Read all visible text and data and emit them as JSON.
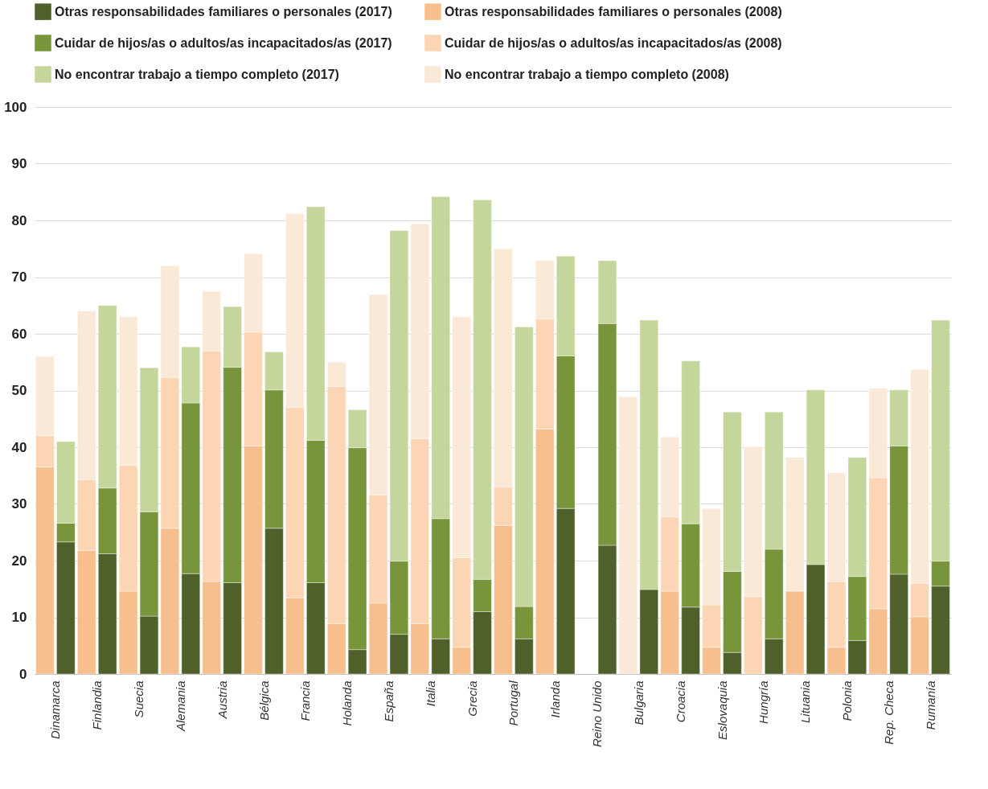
{
  "chart_data": {
    "type": "bar",
    "stacked": true,
    "categories": [
      "Dinamarca",
      null,
      "Finlandia",
      null,
      "Suecia",
      null,
      "Alemania",
      null,
      "Austria",
      null,
      "Bélgica",
      null,
      "Francia",
      null,
      "Holanda",
      null,
      "España",
      null,
      "Italia",
      null,
      "Grecia",
      null,
      "Portugal",
      null,
      "Irlanda",
      null,
      "Reino Unido",
      null,
      "Bulgaria",
      null,
      "Croacia",
      null,
      "Eslovaquia",
      null,
      "Hungría",
      null,
      "Lituania",
      null,
      "Polonia",
      null,
      "Rep. Checa",
      null,
      "Rumanía",
      null
    ],
    "series": [
      {
        "name": "Otras responsabilidades familiares o personales (2017)",
        "color": "#4f602a",
        "values": [
          null,
          23.3,
          null,
          21.2,
          null,
          10.2,
          null,
          17.7,
          null,
          16.1,
          null,
          25.7,
          null,
          16.1,
          null,
          4.3,
          null,
          7.0,
          null,
          6.2,
          null,
          11.0,
          null,
          6.2,
          null,
          29.2,
          null,
          22.7,
          null,
          14.9,
          null,
          11.8,
          null,
          3.8,
          null,
          6.2,
          null,
          19.3,
          null,
          5.9,
          null,
          17.6,
          null,
          15.5
        ]
      },
      {
        "name": "Otras responsabilidades familiares o personales (2008)",
        "color": "#f7bf8e",
        "values": [
          36.5,
          null,
          21.8,
          null,
          14.6,
          null,
          25.7,
          null,
          16.3,
          null,
          40.2,
          null,
          13.4,
          null,
          8.9,
          null,
          12.5,
          null,
          8.9,
          null,
          4.7,
          null,
          26.2,
          null,
          43.2,
          null,
          null,
          null,
          null,
          null,
          14.6,
          null,
          4.7,
          null,
          null,
          null,
          14.6,
          null,
          4.7,
          null,
          11.5,
          null,
          10.1,
          null
        ]
      },
      {
        "name": "Cuidar de hijos/as o adultos/as incapacitados/as (2017)",
        "color": "#78953c",
        "values": [
          null,
          3.3,
          null,
          11.6,
          null,
          18.4,
          null,
          30.1,
          null,
          38.0,
          null,
          24.4,
          null,
          25.1,
          null,
          35.6,
          null,
          12.9,
          null,
          21.2,
          null,
          5.7,
          null,
          5.7,
          null,
          26.9,
          null,
          39.1,
          null,
          null,
          null,
          14.7,
          null,
          14.3,
          null,
          15.8,
          null,
          null,
          null,
          11.3,
          null,
          22.6,
          null,
          4.4
        ]
      },
      {
        "name": "Cuidar de hijos/as o adultos/as incapacitados/as (2008)",
        "color": "#fcd5b4",
        "values": [
          5.5,
          null,
          12.5,
          null,
          22.2,
          null,
          26.6,
          null,
          40.7,
          null,
          20.1,
          null,
          33.6,
          null,
          41.8,
          null,
          19.1,
          null,
          32.6,
          null,
          15.8,
          null,
          6.8,
          null,
          19.4,
          null,
          null,
          null,
          null,
          null,
          13.1,
          null,
          7.5,
          null,
          13.6,
          null,
          null,
          null,
          11.6,
          null,
          23.1,
          null,
          5.9,
          null
        ]
      },
      {
        "name": "No encontrar trabajo a tiempo completo (2017)",
        "color": "#c4d69c",
        "values": [
          null,
          14.4,
          null,
          32.2,
          null,
          25.4,
          null,
          9.9,
          null,
          10.7,
          null,
          6.7,
          null,
          41.2,
          null,
          6.7,
          null,
          58.3,
          null,
          56.8,
          null,
          66.9,
          null,
          49.3,
          null,
          17.6,
          null,
          11.1,
          null,
          47.5,
          null,
          28.7,
          null,
          28.1,
          null,
          24.2,
          null,
          30.8,
          null,
          21.0,
          null,
          9.9,
          null,
          42.5
        ]
      },
      {
        "name": "No encontrar trabajo a tiempo completo (2008)",
        "color": "#fbe9d8",
        "values": [
          14.0,
          null,
          29.7,
          null,
          26.2,
          null,
          19.7,
          null,
          10.5,
          null,
          13.8,
          null,
          34.2,
          null,
          4.3,
          null,
          35.3,
          null,
          37.9,
          null,
          42.5,
          null,
          42.0,
          null,
          10.3,
          null,
          null,
          null,
          48.9,
          null,
          14.1,
          null,
          17.0,
          null,
          26.5,
          null,
          23.6,
          null,
          19.2,
          null,
          15.8,
          null,
          37.7,
          null
        ]
      }
    ],
    "ylim": [
      0,
      100
    ],
    "yticks": [
      0,
      10,
      20,
      30,
      40,
      50,
      60,
      70,
      80,
      90,
      100
    ],
    "grid": "y",
    "legend": "top"
  }
}
